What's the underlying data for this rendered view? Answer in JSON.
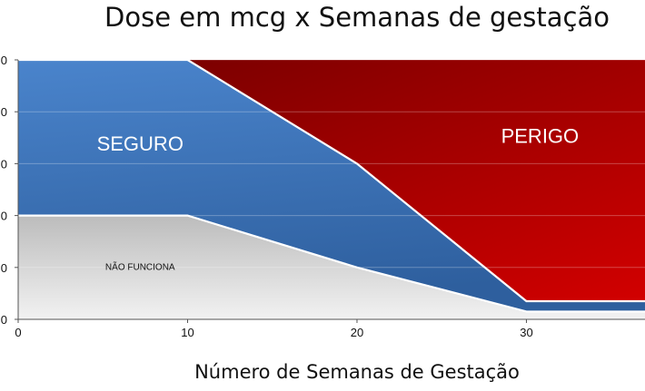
{
  "chart_data": {
    "type": "area",
    "title": "Dose em mcg x Semanas de gestação",
    "xlabel": "Número de Semanas de Gestação",
    "ylabel": "",
    "x_ticks": [
      0,
      10,
      20,
      30
    ],
    "xlim": [
      0,
      37
    ],
    "ylim": [
      0,
      5
    ],
    "y_gridlines": [
      0,
      1,
      2,
      3,
      4,
      5
    ],
    "y_tick_labels_visible": [
      "0",
      "0",
      "0",
      "0",
      "0",
      "0"
    ],
    "regions": [
      {
        "label": "NÃO FUNCIONA",
        "color": "#cfcfcf",
        "lower": [
          [
            0,
            0
          ],
          [
            37,
            0
          ]
        ],
        "upper": [
          [
            0,
            2
          ],
          [
            10,
            2
          ],
          [
            20,
            1
          ],
          [
            30,
            0.15
          ],
          [
            37,
            0.15
          ]
        ]
      },
      {
        "label": "SEGURO",
        "color": "#3c72b8",
        "lower": [
          [
            0,
            2
          ],
          [
            10,
            2
          ],
          [
            20,
            1
          ],
          [
            30,
            0.15
          ],
          [
            37,
            0.15
          ]
        ],
        "upper": [
          [
            0,
            5
          ],
          [
            10,
            5
          ],
          [
            20,
            3
          ],
          [
            30,
            0.35
          ],
          [
            37,
            0.35
          ]
        ]
      },
      {
        "label": "PERIGO",
        "color": "#b00000",
        "lower": [
          [
            0,
            5
          ],
          [
            10,
            5
          ],
          [
            20,
            3
          ],
          [
            30,
            0.35
          ],
          [
            37,
            0.35
          ]
        ],
        "upper": [
          [
            0,
            5
          ],
          [
            37,
            5
          ]
        ]
      }
    ],
    "region_label_positions": {
      "SEGURO": [
        7.2,
        3.25
      ],
      "PERIGO": [
        30.8,
        3.4
      ],
      "NÃO FUNCIONA": [
        7.2,
        0.95
      ]
    }
  }
}
